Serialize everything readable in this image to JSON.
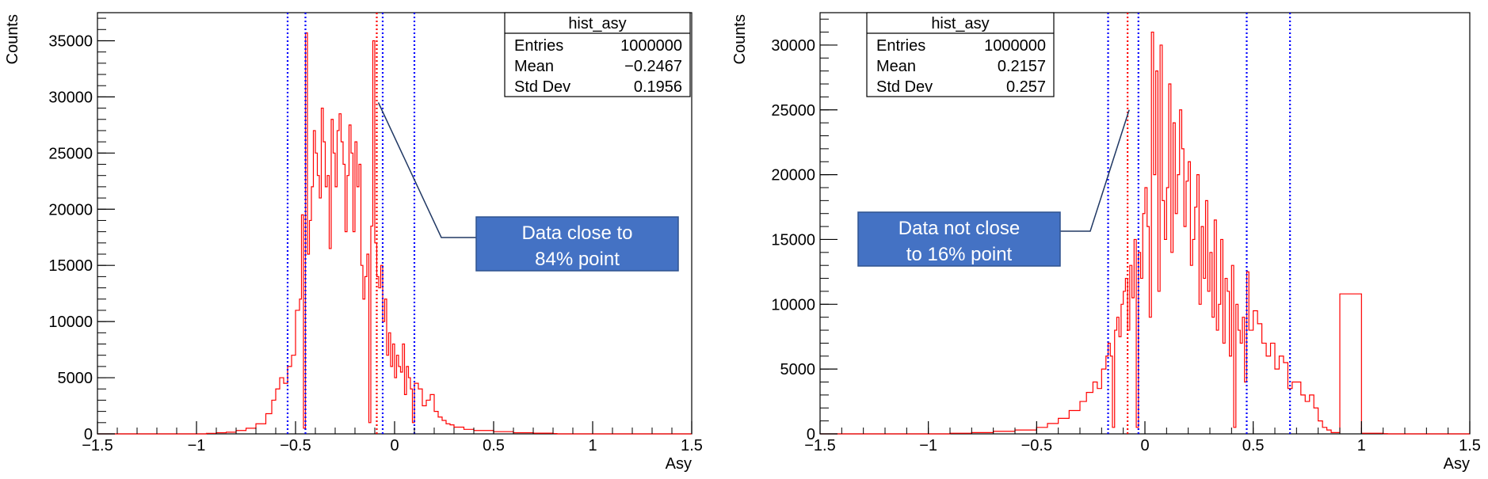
{
  "chart_data": [
    {
      "type": "histogram",
      "xlabel": "Asy",
      "ylabel": "Counts",
      "xlim": [
        -1.5,
        1.5
      ],
      "ylim": [
        0,
        37500
      ],
      "xticks": [
        -1.5,
        -1,
        -0.5,
        0,
        0.5,
        1,
        1.5
      ],
      "xtick_labels": [
        "−1.5",
        "−1",
        "−0.5",
        "0",
        "0.5",
        "1",
        "1.5"
      ],
      "yticks": [
        0,
        5000,
        10000,
        15000,
        20000,
        25000,
        30000,
        35000
      ],
      "ytick_labels": [
        "0",
        "5000",
        "10000",
        "15000",
        "20000",
        "25000",
        "30000",
        "35000"
      ],
      "stats": {
        "title": "hist_asy",
        "rows": [
          {
            "label": "Entries",
            "value": "1000000"
          },
          {
            "label": "Mean",
            "value": "−0.2467"
          },
          {
            "label": "Std Dev",
            "value": "0.1956"
          }
        ]
      },
      "vlines_blue": [
        -0.54,
        -0.45,
        -0.06,
        0.1
      ],
      "vlines_red": [
        -0.09
      ],
      "annotation": {
        "lines": [
          "Data close to",
          "84% point"
        ],
        "points_to": [
          -0.09,
          29500
        ]
      },
      "series": [
        {
          "x": [
            -0.95,
            -0.9,
            -0.85,
            -0.8,
            -0.75,
            -0.7,
            -0.65,
            -0.62,
            -0.6,
            -0.58,
            -0.56,
            -0.54,
            -0.52,
            -0.5,
            -0.48,
            -0.47,
            -0.46,
            -0.45,
            -0.44,
            -0.43,
            -0.42,
            -0.41,
            -0.4,
            -0.39,
            -0.38,
            -0.37,
            -0.36,
            -0.35,
            -0.34,
            -0.33,
            -0.32,
            -0.31,
            -0.3,
            -0.29,
            -0.28,
            -0.27,
            -0.26,
            -0.25,
            -0.24,
            -0.23,
            -0.22,
            -0.21,
            -0.2,
            -0.19,
            -0.18,
            -0.17,
            -0.16,
            -0.15,
            -0.14,
            -0.13,
            -0.12,
            -0.11,
            -0.1,
            -0.09,
            -0.08,
            -0.07,
            -0.06,
            -0.05,
            -0.04,
            -0.03,
            -0.02,
            -0.01,
            0,
            0.01,
            0.02,
            0.03,
            0.04,
            0.05,
            0.06,
            0.07,
            0.08,
            0.09,
            0.1,
            0.12,
            0.14,
            0.16,
            0.18,
            0.2,
            0.22,
            0.24,
            0.26,
            0.28,
            0.3,
            0.35,
            0.4,
            0.5,
            0.6,
            0.7,
            0.8
          ],
          "values": [
            50,
            100,
            150,
            300,
            500,
            900,
            1800,
            3000,
            4000,
            5000,
            4500,
            6000,
            7000,
            11000,
            12000,
            19500,
            500,
            35700,
            16000,
            19000,
            22000,
            27000,
            25000,
            23000,
            21000,
            29000,
            26000,
            22000,
            23000,
            16500,
            28000,
            25000,
            22000,
            27000,
            28500,
            26000,
            24000,
            18000,
            23000,
            27500,
            25000,
            18000,
            26000,
            22000,
            24000,
            15000,
            12000,
            14000,
            16000,
            1000,
            18500,
            35000,
            17000,
            14000,
            13000,
            15000,
            10000,
            12000,
            7000,
            9000,
            6000,
            8000,
            5000,
            7000,
            6000,
            5500,
            8000,
            3500,
            6000,
            5000,
            4000,
            1000,
            4500,
            4000,
            2500,
            3000,
            3500,
            2000,
            1500,
            1200,
            900,
            800,
            600,
            400,
            300,
            200,
            100,
            60,
            30
          ]
        }
      ]
    },
    {
      "type": "histogram",
      "xlabel": "Asy",
      "ylabel": "Counts",
      "xlim": [
        -1.5,
        1.5
      ],
      "ylim": [
        0,
        32500
      ],
      "xticks": [
        -1.5,
        -1,
        -0.5,
        0,
        0.5,
        1,
        1.5
      ],
      "xtick_labels": [
        "−1.5",
        "−1",
        "−0.5",
        "0",
        "0.5",
        "1",
        "1.5"
      ],
      "yticks": [
        0,
        5000,
        10000,
        15000,
        20000,
        25000,
        30000
      ],
      "ytick_labels": [
        "0",
        "5000",
        "10000",
        "15000",
        "20000",
        "25000",
        "30000"
      ],
      "stats": {
        "title": "hist_asy",
        "rows": [
          {
            "label": "Entries",
            "value": "1000000"
          },
          {
            "label": "Mean",
            "value": "0.2157"
          },
          {
            "label": "Std Dev",
            "value": "0.257"
          }
        ]
      },
      "vlines_blue": [
        -0.17,
        -0.03,
        0.47,
        0.67
      ],
      "vlines_red": [
        -0.08
      ],
      "annotation": {
        "lines": [
          "Data not close",
          "to 16% point"
        ],
        "points_to": [
          -0.08,
          25000
        ]
      },
      "series": [
        {
          "x": [
            -0.9,
            -0.8,
            -0.7,
            -0.6,
            -0.5,
            -0.45,
            -0.4,
            -0.35,
            -0.3,
            -0.27,
            -0.24,
            -0.22,
            -0.2,
            -0.18,
            -0.17,
            -0.16,
            -0.15,
            -0.14,
            -0.13,
            -0.12,
            -0.11,
            -0.1,
            -0.09,
            -0.08,
            -0.07,
            -0.06,
            -0.05,
            -0.04,
            -0.03,
            -0.02,
            -0.01,
            0,
            0.01,
            0.02,
            0.03,
            0.04,
            0.05,
            0.06,
            0.07,
            0.08,
            0.09,
            0.1,
            0.11,
            0.12,
            0.13,
            0.14,
            0.15,
            0.16,
            0.17,
            0.18,
            0.19,
            0.2,
            0.21,
            0.22,
            0.23,
            0.24,
            0.25,
            0.26,
            0.27,
            0.28,
            0.29,
            0.3,
            0.31,
            0.32,
            0.33,
            0.34,
            0.35,
            0.36,
            0.37,
            0.38,
            0.39,
            0.4,
            0.41,
            0.42,
            0.43,
            0.44,
            0.45,
            0.46,
            0.47,
            0.48,
            0.5,
            0.52,
            0.54,
            0.56,
            0.58,
            0.6,
            0.62,
            0.64,
            0.66,
            0.68,
            0.7,
            0.72,
            0.74,
            0.76,
            0.78,
            0.8,
            0.82,
            0.84,
            0.86,
            0.9,
            1.0,
            1.1
          ],
          "values": [
            50,
            100,
            200,
            300,
            500,
            800,
            1200,
            1800,
            2500,
            3200,
            4000,
            3500,
            5000,
            6000,
            7000,
            6000,
            500,
            8000,
            9000,
            7500,
            10000,
            11000,
            12000,
            8000,
            13000,
            10500,
            15000,
            500,
            14000,
            12000,
            17000,
            19000,
            16000,
            9000,
            31000,
            20000,
            28000,
            11000,
            30000,
            18000,
            15000,
            19000,
            27000,
            14000,
            24000,
            17000,
            20000,
            25000,
            22000,
            16000,
            19500,
            21000,
            13000,
            15000,
            17500,
            20000,
            10000,
            16000,
            12000,
            18000,
            11000,
            14000,
            9000,
            16500,
            8000,
            10000,
            15000,
            7000,
            12000,
            11000,
            6000,
            13000,
            500,
            10000,
            8000,
            7000,
            9000,
            4000,
            12500,
            8000,
            9500,
            8500,
            7000,
            6000,
            7000,
            5000,
            6000,
            5500,
            3500,
            4000,
            4000,
            3000,
            2500,
            3000,
            2000,
            1000,
            500,
            300,
            100,
            10800,
            50,
            20
          ]
        }
      ]
    }
  ]
}
